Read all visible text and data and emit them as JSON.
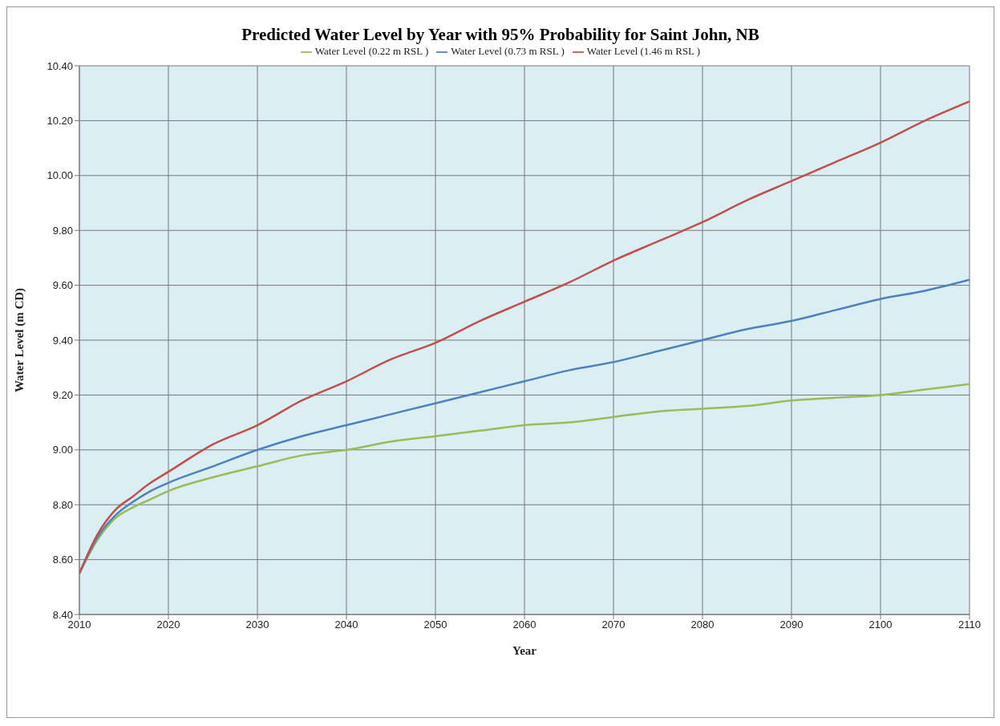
{
  "chart_data": {
    "type": "line",
    "title": "Predicted Water Level by Year with 95% Probability for Saint John, NB",
    "xlabel": "Year",
    "ylabel": "Water Level (m CD)",
    "x": [
      2010,
      2012,
      2014,
      2016,
      2018,
      2020,
      2025,
      2030,
      2035,
      2040,
      2045,
      2050,
      2055,
      2060,
      2065,
      2070,
      2075,
      2080,
      2085,
      2090,
      2095,
      2100,
      2105,
      2110
    ],
    "series": [
      {
        "name": "Water Level (0.22 m RSL )",
        "color": "#9bbb59",
        "values": [
          8.55,
          8.67,
          8.75,
          8.79,
          8.82,
          8.85,
          8.9,
          8.94,
          8.98,
          9.0,
          9.03,
          9.05,
          9.07,
          9.09,
          9.1,
          9.12,
          9.14,
          9.15,
          9.16,
          9.18,
          9.19,
          9.2,
          9.22,
          9.24
        ]
      },
      {
        "name": "Water Level (0.73 m RSL )",
        "color": "#4f81bd",
        "values": [
          8.55,
          8.68,
          8.76,
          8.81,
          8.85,
          8.88,
          8.94,
          9.0,
          9.05,
          9.09,
          9.13,
          9.17,
          9.21,
          9.25,
          9.29,
          9.32,
          9.36,
          9.4,
          9.44,
          9.47,
          9.51,
          9.55,
          9.58,
          9.62
        ]
      },
      {
        "name": "Water Level (1.46 m RSL )",
        "color": "#c0504d",
        "values": [
          8.55,
          8.69,
          8.78,
          8.83,
          8.88,
          8.92,
          9.02,
          9.09,
          9.18,
          9.25,
          9.33,
          9.39,
          9.47,
          9.54,
          9.61,
          9.69,
          9.76,
          9.83,
          9.91,
          9.98,
          10.05,
          10.12,
          10.2,
          10.27
        ]
      }
    ],
    "xlim": [
      2010,
      2110
    ],
    "xticks": [
      2010,
      2020,
      2030,
      2040,
      2050,
      2060,
      2070,
      2080,
      2090,
      2100,
      2110
    ],
    "ylim": [
      8.4,
      10.4
    ],
    "yticks": [
      {
        "value": 8.4,
        "label": "8.40"
      },
      {
        "value": 8.6,
        "label": "8.60"
      },
      {
        "value": 8.8,
        "label": "8.80"
      },
      {
        "value": 9.0,
        "label": "9.00"
      },
      {
        "value": 9.2,
        "label": "9.20"
      },
      {
        "value": 9.4,
        "label": "9.40"
      },
      {
        "value": 9.6,
        "label": "9.60"
      },
      {
        "value": 9.8,
        "label": "9.80"
      },
      {
        "value": 10.0,
        "label": "10.00"
      },
      {
        "value": 10.2,
        "label": "10.20"
      },
      {
        "value": 10.4,
        "label": "10.40"
      }
    ],
    "grid": true,
    "legend": "top",
    "marker": "none",
    "line_style": "solid"
  }
}
